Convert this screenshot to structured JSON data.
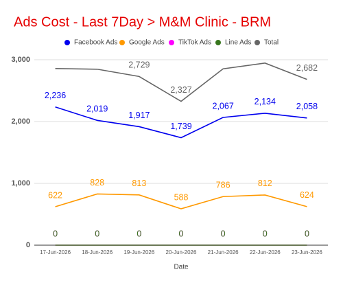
{
  "chart_data": {
    "type": "line",
    "title": "Ads Cost - Last 7Day > M&M Clinic - BRM",
    "x_label": "Date",
    "categories": [
      "17-Jun-2026",
      "18-Jun-2026",
      "19-Jun-2026",
      "20-Jun-2026",
      "21-Jun-2026",
      "22-Jun-2026",
      "23-Jun-2026"
    ],
    "series": [
      {
        "name": "Facebook Ads",
        "color": "#0000ee",
        "values": [
          2236,
          2019,
          1917,
          1739,
          2067,
          2134,
          2058
        ],
        "value_labels": [
          "2,236",
          "2,019",
          "1,917",
          "1,739",
          "2,067",
          "2,134",
          "2,058"
        ]
      },
      {
        "name": "Google Ads",
        "color": "#ff9900",
        "values": [
          622,
          828,
          813,
          588,
          786,
          812,
          624
        ]
      },
      {
        "name": "TikTok Ads",
        "color": "#ff00ff",
        "values": [
          0,
          0,
          0,
          0,
          0,
          0,
          0
        ]
      },
      {
        "name": "Line Ads",
        "color": "#38761d",
        "values": [
          0,
          0,
          0,
          0,
          0,
          0,
          0
        ]
      },
      {
        "name": "Total",
        "color": "#666666",
        "values": [
          2858,
          2847,
          2729,
          2327,
          2853,
          2946,
          2682
        ],
        "value_labels": [
          null,
          null,
          "2,729",
          "2,327",
          null,
          null,
          "2,682"
        ]
      }
    ],
    "ylim": [
      0,
      3100
    ],
    "yticks": [
      0,
      {
        "value": 1000,
        "label": "1,000"
      },
      {
        "value": 2000,
        "label": "2,000"
      },
      {
        "value": 3000,
        "label": "3,000"
      }
    ],
    "grid": true,
    "legend": "top"
  }
}
